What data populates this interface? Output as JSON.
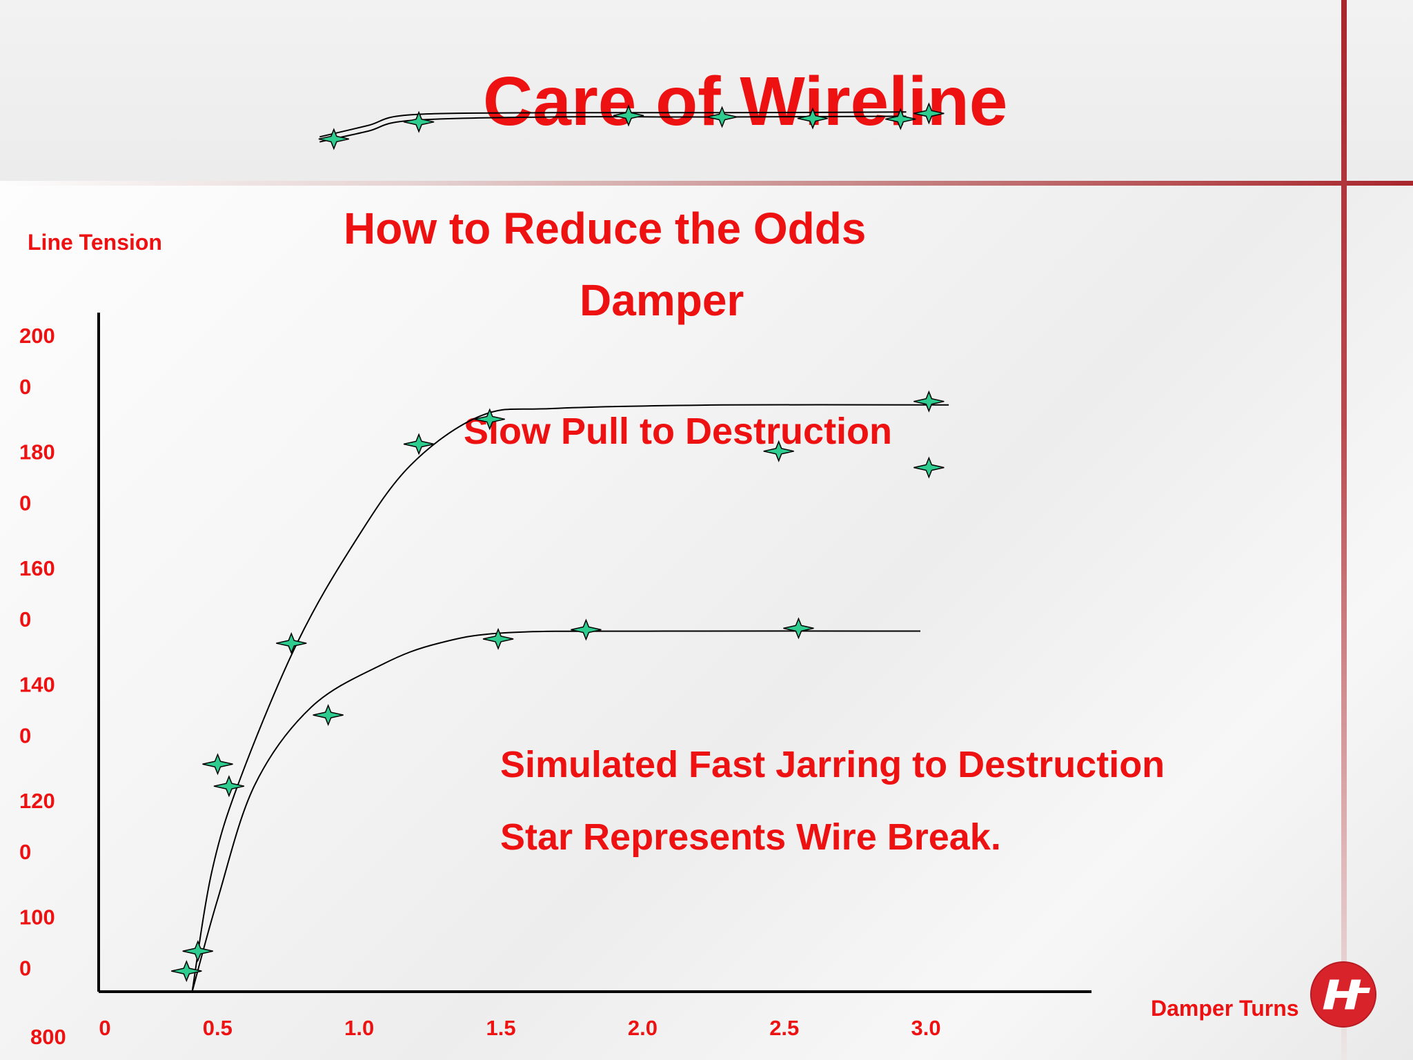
{
  "slide": {
    "title": "Care of Wireline",
    "subtitle": "How to Reduce the Odds",
    "subtitle2": "Damper",
    "label_slow": "Slow Pull to Destruction",
    "label_fast": "Simulated Fast Jarring to Destruction",
    "note": "Star Represents Wire Break.",
    "colors": {
      "text": "#ee1111",
      "accent_line": "#a8262c",
      "marker_fill": "#2ecc8f",
      "curve": "#000000"
    },
    "logo_icon": "company-logo-icon"
  },
  "chart_data": {
    "type": "line",
    "xlabel": "Damper Turns",
    "ylabel": "Line Tension",
    "x_tick_labels": [
      "0",
      "0.5",
      "1.0",
      "1.5",
      "2.0",
      "2.5",
      "3.0"
    ],
    "y_tick_labels": [
      {
        "top": "200",
        "bottom": "0"
      },
      {
        "top": "180",
        "bottom": "0"
      },
      {
        "top": "160",
        "bottom": "0"
      },
      {
        "top": "140",
        "bottom": "0"
      },
      {
        "top": "120",
        "bottom": "0"
      },
      {
        "top": "100",
        "bottom": "0"
      },
      {
        "top": "800",
        "bottom": ""
      }
    ],
    "xlim": [
      0,
      3.5
    ],
    "ylim": [
      8000,
      20500
    ],
    "marker": "four-point-star",
    "series": [
      {
        "curves": [
          [
            [
              0.78,
              19950
            ],
            [
              0.95,
              20100
            ],
            [
              1.1,
              20250
            ],
            [
              1.6,
              20300
            ],
            [
              2.2,
              20300
            ],
            [
              2.85,
              20310
            ]
          ],
          [
            [
              0.78,
              20020
            ],
            [
              0.95,
              20180
            ],
            [
              1.1,
              20330
            ],
            [
              1.6,
              20360
            ],
            [
              2.2,
              20360
            ],
            [
              2.85,
              20370
            ]
          ]
        ],
        "breaks": [
          [
            0.83,
            19990
          ],
          [
            1.13,
            20230
          ],
          [
            1.87,
            20320
          ],
          [
            2.2,
            20300
          ],
          [
            2.52,
            20280
          ],
          [
            2.83,
            20270
          ],
          [
            2.93,
            20350
          ]
        ]
      },
      {
        "curves": [
          [
            [
              0.33,
              8000
            ],
            [
              0.4,
              9700
            ],
            [
              0.5,
              11000
            ],
            [
              0.7,
              12900
            ],
            [
              0.9,
              14300
            ],
            [
              1.1,
              15400
            ],
            [
              1.35,
              16100
            ],
            [
              1.6,
              16200
            ],
            [
              2.2,
              16250
            ],
            [
              3.0,
              16250
            ]
          ]
        ],
        "breaks": [
          [
            0.42,
            11200
          ],
          [
            0.68,
            12900
          ],
          [
            1.13,
            15700
          ],
          [
            1.38,
            16050
          ],
          [
            2.4,
            15600
          ],
          [
            2.93,
            16300
          ],
          [
            2.93,
            15370
          ]
        ]
      },
      {
        "curves": [
          [
            [
              0.33,
              8000
            ],
            [
              0.42,
              9300
            ],
            [
              0.55,
              10900
            ],
            [
              0.75,
              12000
            ],
            [
              1.0,
              12600
            ],
            [
              1.2,
              12900
            ],
            [
              1.45,
              13050
            ],
            [
              2.0,
              13070
            ],
            [
              2.9,
              13070
            ]
          ]
        ],
        "breaks": [
          [
            0.31,
            8290
          ],
          [
            0.35,
            8570
          ],
          [
            0.46,
            10890
          ],
          [
            0.81,
            11890
          ],
          [
            1.41,
            12960
          ],
          [
            1.72,
            13090
          ],
          [
            2.47,
            13110
          ]
        ]
      }
    ]
  }
}
